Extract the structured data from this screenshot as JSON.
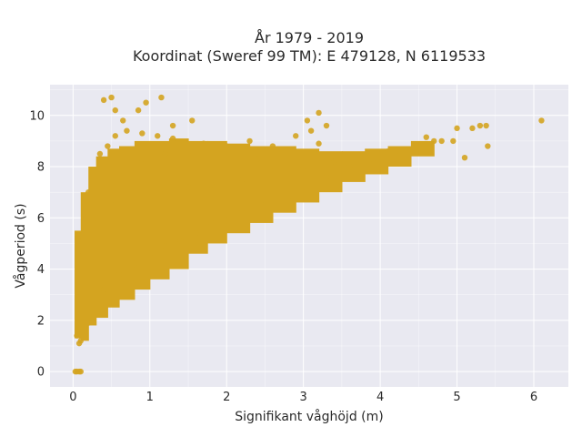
{
  "chart_data": {
    "type": "scatter",
    "title_lines": [
      "År 1979 - 2019",
      "Koordinat (Sweref 99 TM): E 479128, N 6119533"
    ],
    "xlabel": "Signifikant våghöjd (m)",
    "ylabel": "Vågperiod (s)",
    "xlim": [
      -0.3,
      6.45
    ],
    "ylim": [
      -0.6,
      11.2
    ],
    "xticks": [
      0,
      1,
      2,
      3,
      4,
      5,
      6
    ],
    "yticks": [
      0,
      2,
      4,
      6,
      8,
      10
    ],
    "grid": true,
    "legend": "none",
    "marker_color": "#D4A420",
    "plot_background": "#E9E9F1",
    "grid_color": "#FFFFFF",
    "points": [
      [
        0.03,
        0.0
      ],
      [
        0.05,
        0.0
      ],
      [
        0.08,
        0.0
      ],
      [
        0.1,
        0.0
      ],
      [
        0.05,
        1.4
      ],
      [
        0.08,
        1.1
      ],
      [
        0.1,
        1.2
      ],
      [
        0.15,
        1.5
      ],
      [
        0.2,
        1.9
      ],
      [
        0.12,
        2.5
      ],
      [
        0.1,
        3.5
      ],
      [
        0.08,
        4.5
      ],
      [
        0.06,
        5.2
      ],
      [
        0.15,
        6.2
      ],
      [
        0.2,
        7.0
      ],
      [
        0.25,
        7.7
      ],
      [
        0.35,
        8.5
      ],
      [
        0.45,
        8.8
      ],
      [
        0.55,
        9.2
      ],
      [
        0.7,
        9.4
      ],
      [
        0.9,
        9.3
      ],
      [
        1.1,
        9.2
      ],
      [
        1.3,
        9.1
      ],
      [
        0.4,
        10.6
      ],
      [
        0.5,
        10.7
      ],
      [
        0.55,
        10.2
      ],
      [
        0.65,
        9.8
      ],
      [
        0.85,
        10.2
      ],
      [
        0.95,
        10.5
      ],
      [
        1.15,
        10.7
      ],
      [
        1.3,
        9.6
      ],
      [
        1.55,
        9.8
      ],
      [
        0.4,
        3.2
      ],
      [
        0.6,
        3.8
      ],
      [
        0.8,
        4.2
      ],
      [
        1.0,
        4.6
      ],
      [
        1.2,
        4.9
      ],
      [
        1.4,
        5.1
      ],
      [
        1.6,
        5.4
      ],
      [
        1.8,
        5.8
      ],
      [
        2.0,
        5.9
      ],
      [
        2.2,
        6.2
      ],
      [
        2.5,
        6.5
      ],
      [
        2.8,
        6.8
      ],
      [
        1.7,
        8.9
      ],
      [
        2.0,
        8.8
      ],
      [
        2.3,
        9.0
      ],
      [
        2.6,
        8.8
      ],
      [
        2.9,
        9.2
      ],
      [
        3.1,
        9.4
      ],
      [
        3.2,
        8.9
      ],
      [
        3.05,
        9.8
      ],
      [
        3.3,
        9.6
      ],
      [
        3.2,
        10.1
      ],
      [
        3.0,
        7.2
      ],
      [
        3.3,
        7.6
      ],
      [
        3.6,
        8.0
      ],
      [
        3.9,
        8.3
      ],
      [
        4.2,
        8.6
      ],
      [
        4.5,
        8.8
      ],
      [
        4.8,
        9.0
      ],
      [
        5.0,
        9.5
      ],
      [
        5.2,
        9.5
      ],
      [
        5.3,
        9.6
      ],
      [
        5.38,
        9.6
      ],
      [
        4.95,
        9.0
      ],
      [
        5.1,
        8.35
      ],
      [
        5.4,
        8.8
      ],
      [
        4.6,
        9.15
      ],
      [
        4.7,
        9.0
      ],
      [
        6.1,
        9.8
      ],
      [
        0.3,
        6.0
      ],
      [
        0.5,
        6.5
      ],
      [
        0.7,
        6.5
      ],
      [
        1.0,
        6.8
      ],
      [
        1.2,
        7.0
      ],
      [
        1.5,
        7.2
      ],
      [
        1.8,
        7.3
      ],
      [
        2.2,
        7.5
      ],
      [
        2.6,
        7.8
      ],
      [
        3.0,
        8.0
      ],
      [
        3.4,
        8.2
      ],
      [
        3.8,
        8.4
      ],
      [
        4.1,
        8.6
      ],
      [
        0.6,
        7.8
      ],
      [
        0.9,
        8.3
      ],
      [
        1.2,
        8.5
      ],
      [
        1.5,
        8.6
      ],
      [
        1.9,
        8.4
      ],
      [
        2.4,
        8.3
      ]
    ],
    "bands": [
      {
        "from": 0.02,
        "to": 0.1,
        "ylow": 1.3,
        "yhigh": 5.5
      },
      {
        "from": 0.1,
        "to": 0.2,
        "ylow": 1.2,
        "yhigh": 7.0
      },
      {
        "from": 0.2,
        "to": 0.3,
        "ylow": 1.8,
        "yhigh": 8.0
      },
      {
        "from": 0.3,
        "to": 0.45,
        "ylow": 2.1,
        "yhigh": 8.4
      },
      {
        "from": 0.45,
        "to": 0.6,
        "ylow": 2.5,
        "yhigh": 8.7
      },
      {
        "from": 0.6,
        "to": 0.8,
        "ylow": 2.8,
        "yhigh": 8.8
      },
      {
        "from": 0.8,
        "to": 1.0,
        "ylow": 3.2,
        "yhigh": 9.0
      },
      {
        "from": 1.0,
        "to": 1.25,
        "ylow": 3.6,
        "yhigh": 9.0
      },
      {
        "from": 1.25,
        "to": 1.5,
        "ylow": 4.0,
        "yhigh": 9.1
      },
      {
        "from": 1.5,
        "to": 1.75,
        "ylow": 4.6,
        "yhigh": 9.0
      },
      {
        "from": 1.75,
        "to": 2.0,
        "ylow": 5.0,
        "yhigh": 9.0
      },
      {
        "from": 2.0,
        "to": 2.3,
        "ylow": 5.4,
        "yhigh": 8.9
      },
      {
        "from": 2.3,
        "to": 2.6,
        "ylow": 5.8,
        "yhigh": 8.8
      },
      {
        "from": 2.6,
        "to": 2.9,
        "ylow": 6.2,
        "yhigh": 8.8
      },
      {
        "from": 2.9,
        "to": 3.2,
        "ylow": 6.6,
        "yhigh": 8.7
      },
      {
        "from": 3.2,
        "to": 3.5,
        "ylow": 7.0,
        "yhigh": 8.6
      },
      {
        "from": 3.5,
        "to": 3.8,
        "ylow": 7.4,
        "yhigh": 8.6
      },
      {
        "from": 3.8,
        "to": 4.1,
        "ylow": 7.7,
        "yhigh": 8.7
      },
      {
        "from": 4.1,
        "to": 4.4,
        "ylow": 8.0,
        "yhigh": 8.8
      },
      {
        "from": 4.4,
        "to": 4.7,
        "ylow": 8.4,
        "yhigh": 9.0
      }
    ]
  }
}
